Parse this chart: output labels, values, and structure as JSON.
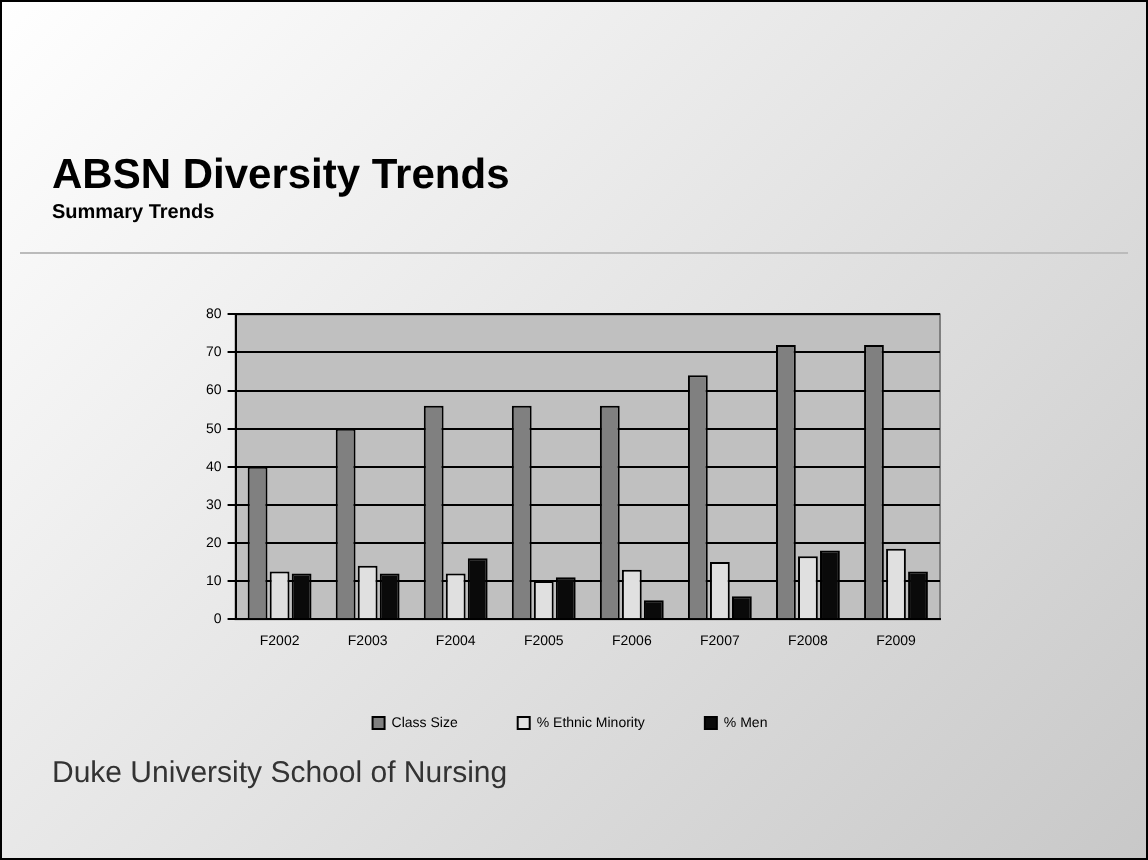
{
  "chart_data": {
    "type": "bar",
    "title": "ABSN Diversity Trends",
    "subtitle": "Summary Trends",
    "categories": [
      "F2002",
      "F2003",
      "F2004",
      "F2005",
      "F2006",
      "F2007",
      "F2008",
      "F2009"
    ],
    "series": [
      {
        "name": "Class Size",
        "color": "#808080",
        "values": [
          40,
          50,
          56,
          56,
          56,
          64,
          72,
          72
        ]
      },
      {
        "name": "% Ethnic Minority",
        "color": "#e0e0e0",
        "values": [
          12.5,
          14,
          12,
          10,
          13,
          15,
          16.5,
          18.5
        ]
      },
      {
        "name": "% Men",
        "color": "#0a0a0a",
        "values": [
          12,
          12,
          16,
          11,
          5,
          6,
          18,
          12.5
        ]
      }
    ],
    "ylim": [
      0,
      80
    ],
    "yticks": [
      0,
      10,
      20,
      30,
      40,
      50,
      60,
      70,
      80
    ],
    "grid": "y",
    "legend": "bottom",
    "annotations": [
      "Duke University School of Nursing"
    ]
  }
}
